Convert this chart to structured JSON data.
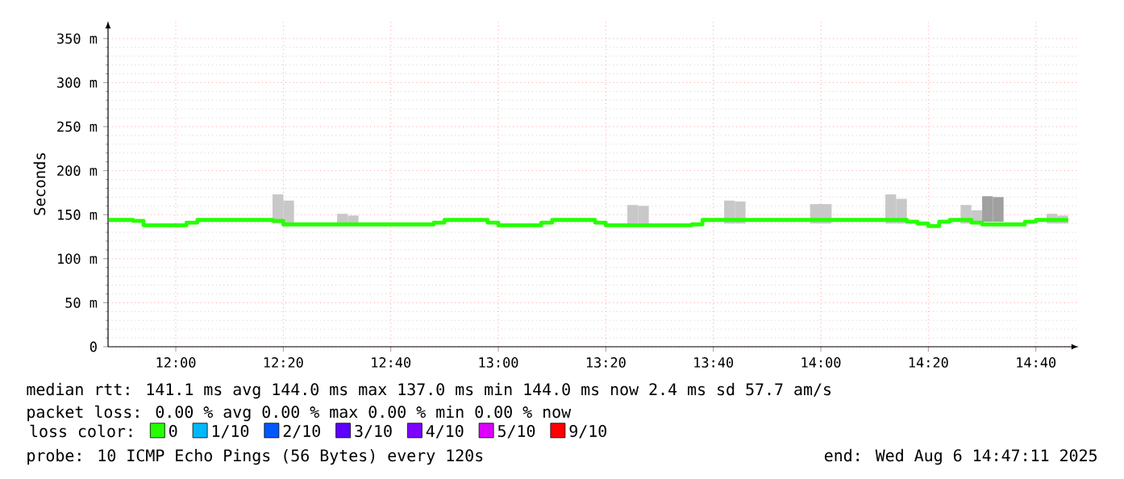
{
  "chart_data": {
    "type": "step",
    "ylabel": "Seconds",
    "legend_title": "loss color:",
    "legend": "bottom",
    "grid": true,
    "xlim": [
      11.79,
      14.8
    ],
    "ylim": [
      0,
      370
    ],
    "xticks": [
      {
        "value": 12.0,
        "label": "12:00"
      },
      {
        "value": 12.3333,
        "label": "12:20"
      },
      {
        "value": 12.6667,
        "label": "12:40"
      },
      {
        "value": 13.0,
        "label": "13:00"
      },
      {
        "value": 13.3333,
        "label": "13:20"
      },
      {
        "value": 13.6667,
        "label": "13:40"
      },
      {
        "value": 14.0,
        "label": "14:00"
      },
      {
        "value": 14.3333,
        "label": "14:20"
      },
      {
        "value": 14.6667,
        "label": "14:40"
      }
    ],
    "yticks": [
      0,
      {
        "value": 50,
        "label": "50 m"
      },
      {
        "value": 100,
        "label": "100 m"
      },
      {
        "value": 150,
        "label": "150 m"
      },
      {
        "value": 200,
        "label": "200 m"
      },
      {
        "value": 250,
        "label": "250 m"
      },
      {
        "value": 300,
        "label": "300 m"
      },
      {
        "value": 350,
        "label": "350 m"
      }
    ],
    "series": [
      {
        "type": "bar",
        "x": [
          12.3167,
          12.35,
          12.5167,
          12.55,
          13.4167,
          13.45,
          13.7167,
          13.75,
          13.9833,
          14.0167,
          14.2167,
          14.25,
          14.45,
          14.4833,
          14.5167,
          14.55,
          14.7167,
          14.75
        ],
        "base": [
          140,
          140,
          140,
          140,
          140,
          140,
          140,
          140,
          140,
          140,
          140,
          140,
          140,
          140,
          142,
          142,
          140,
          140
        ],
        "values": [
          33,
          26,
          11,
          9,
          21,
          20,
          26,
          25,
          22,
          22,
          33,
          28,
          21,
          15,
          29,
          28,
          11,
          9
        ],
        "colors": [
          "#c8c8c8",
          "#c8c8c8",
          "#c8c8c8",
          "#c8c8c8",
          "#c8c8c8",
          "#c8c8c8",
          "#c8c8c8",
          "#c8c8c8",
          "#c8c8c8",
          "#c8c8c8",
          "#c8c8c8",
          "#c8c8c8",
          "#c8c8c8",
          "#c8c8c8",
          "#a0a0a0",
          "#a0a0a0",
          "#c8c8c8",
          "#c8c8c8"
        ]
      },
      {
        "name": "0",
        "color": "#26ff00",
        "x": [
          11.792,
          11.867,
          11.9,
          12.033,
          12.067,
          12.3,
          12.333,
          12.8,
          12.833,
          12.967,
          13.0,
          13.133,
          13.167,
          13.3,
          13.333,
          13.6,
          13.633,
          14.267,
          14.3,
          14.333,
          14.367,
          14.4,
          14.467,
          14.5,
          14.633,
          14.667,
          14.767
        ],
        "values": [
          144,
          143,
          138,
          141,
          144,
          143,
          139,
          141,
          144,
          141,
          138,
          141,
          144,
          141,
          138,
          139,
          144,
          142,
          140,
          137,
          142,
          144,
          141,
          139,
          142,
          144,
          144
        ]
      },
      {
        "name": "1/10",
        "color": "#00b8ff"
      },
      {
        "name": "2/10",
        "color": "#0059ff"
      },
      {
        "name": "3/10",
        "color": "#5e00ff"
      },
      {
        "name": "4/10",
        "color": "#7e00ff"
      },
      {
        "name": "5/10",
        "color": "#dd00ff"
      },
      {
        "name": "9/10",
        "color": "#ff0000"
      }
    ],
    "annotations": [
      "median rtt:  141.1 ms avg  144.0 ms max  137.0 ms min  144.0 ms now  2.4 ms sd  57.7   am/s",
      "packet loss: 0.00 % avg  0.00 % max  0.00 % min  0.00 % now",
      "probe:       10 ICMP Echo Pings (56 Bytes) every 120s",
      "end: Wed Aug  6 14:47:11 2025"
    ]
  }
}
